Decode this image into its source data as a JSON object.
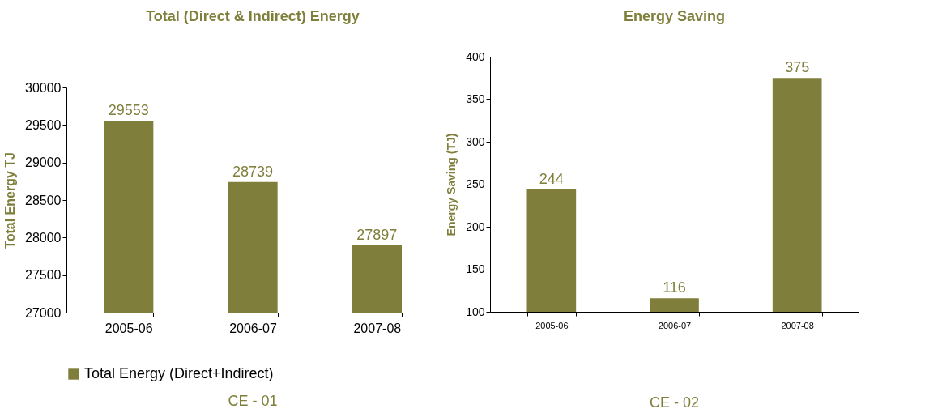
{
  "chart_data": [
    {
      "type": "bar",
      "title": "Total (Direct & Indirect) Energy",
      "ylabel": "Total Energy TJ",
      "categories": [
        "2005-06",
        "2006-07",
        "2007-08"
      ],
      "series": [
        {
          "name": "Total Energy (Direct+Indirect)",
          "color": "#7f7f3b",
          "values": [
            29553,
            28739,
            27897
          ]
        }
      ],
      "ylim": [
        27000,
        30000
      ],
      "yticks": [
        27000,
        27500,
        28000,
        28500,
        29000,
        29500,
        30000
      ],
      "data_labels": true,
      "legend": "bottom",
      "grid": false,
      "annotations": [
        "CE - 01"
      ]
    },
    {
      "type": "bar",
      "title": "Energy Saving",
      "ylabel": "Energy Saving (TJ)",
      "categories": [
        "2005-06",
        "2006-07",
        "2007-08"
      ],
      "series": [
        {
          "color": "#7f7f3b",
          "values": [
            244,
            116,
            375
          ]
        }
      ],
      "ylim": [
        100,
        400
      ],
      "yticks": [
        100,
        150,
        200,
        250,
        300,
        350,
        400
      ],
      "data_labels": true,
      "grid": false,
      "annotations": [
        "CE - 02"
      ]
    }
  ]
}
